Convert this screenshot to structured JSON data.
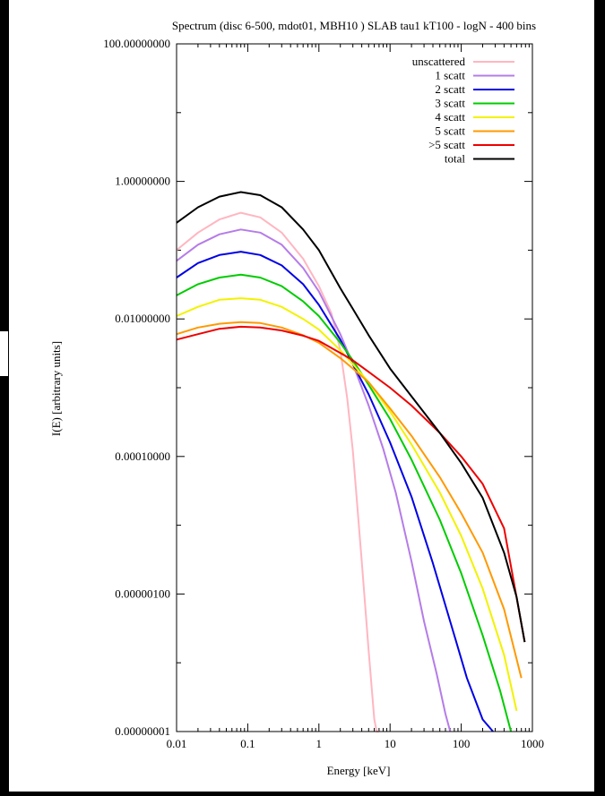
{
  "chart_data": {
    "type": "line",
    "title": "Spectrum (disc 6-500, mdot01, MBH10 ) SLAB tau1 kT100 - logN - 400 bins",
    "xlabel": "Energy [keV]",
    "ylabel": "I(E) [arbitrary units]",
    "xscale": "log",
    "yscale": "log",
    "xlim": [
      0.01,
      1000
    ],
    "ylim": [
      1e-08,
      100
    ],
    "x_tick_labels": [
      "0.01",
      "0.1",
      "1",
      "10",
      "100",
      "1000"
    ],
    "y_tick_labels": [
      "0.00000001",
      "0.00000100",
      "0.00010000",
      "0.01000000",
      "1.00000000",
      "100.00000000"
    ],
    "legend_position": "top-right",
    "grid": false,
    "series": [
      {
        "name": "unscattered",
        "color": "#ffb6c1",
        "x": [
          0.01,
          0.02,
          0.04,
          0.08,
          0.15,
          0.3,
          0.6,
          1.0,
          1.5,
          2.0,
          2.5,
          3.0,
          4.0,
          5.0,
          6.0,
          6.5,
          7.0
        ],
        "y": [
          0.1,
          0.18,
          0.28,
          0.35,
          0.3,
          0.18,
          0.075,
          0.03,
          0.012,
          0.0035,
          0.0007,
          0.00012,
          3e-06,
          1.5e-07,
          1.5e-08,
          1e-08,
          1e-08
        ]
      },
      {
        "name": "1 scatt",
        "color": "#b57ce8",
        "x": [
          0.01,
          0.02,
          0.04,
          0.08,
          0.15,
          0.3,
          0.6,
          1.0,
          2.0,
          3.0,
          5.0,
          8.0,
          12.0,
          20.0,
          30.0,
          45.0,
          60.0,
          70.0
        ],
        "y": [
          0.07,
          0.12,
          0.17,
          0.2,
          0.18,
          0.12,
          0.055,
          0.025,
          0.006,
          0.0022,
          0.00055,
          0.00013,
          3e-05,
          3e-06,
          4e-07,
          7e-08,
          1.8e-08,
          1e-08
        ]
      },
      {
        "name": "2 scatt",
        "color": "#0000e6",
        "x": [
          0.01,
          0.02,
          0.04,
          0.08,
          0.15,
          0.3,
          0.6,
          1.0,
          2.0,
          3.0,
          5.0,
          10.0,
          20.0,
          40.0,
          80.0,
          120.0,
          200.0,
          280.0
        ],
        "y": [
          0.04,
          0.065,
          0.085,
          0.095,
          0.085,
          0.06,
          0.032,
          0.016,
          0.005,
          0.0022,
          0.0008,
          0.00016,
          2.6e-05,
          2.8e-06,
          2.5e-07,
          6e-08,
          1.5e-08,
          1e-08
        ]
      },
      {
        "name": "3 scatt",
        "color": "#00cc00",
        "x": [
          0.01,
          0.02,
          0.04,
          0.08,
          0.15,
          0.3,
          0.6,
          1.0,
          2.0,
          3.0,
          5.0,
          10.0,
          20.0,
          50.0,
          100.0,
          200.0,
          350.0,
          500.0
        ],
        "y": [
          0.022,
          0.032,
          0.04,
          0.044,
          0.04,
          0.03,
          0.018,
          0.011,
          0.0045,
          0.0025,
          0.0011,
          0.00035,
          9e-05,
          1.2e-05,
          2e-06,
          2.5e-07,
          4e-08,
          1e-08
        ]
      },
      {
        "name": "4 scatt",
        "color": "#f2f200",
        "x": [
          0.01,
          0.02,
          0.04,
          0.08,
          0.15,
          0.3,
          0.6,
          1.0,
          2.0,
          3.0,
          5.0,
          10.0,
          20.0,
          50.0,
          100.0,
          200.0,
          400.0,
          600.0
        ],
        "y": [
          0.011,
          0.015,
          0.019,
          0.02,
          0.019,
          0.015,
          0.01,
          0.007,
          0.0035,
          0.0022,
          0.0012,
          0.00045,
          0.00015,
          3e-05,
          7e-06,
          1.2e-06,
          1.3e-07,
          2e-08
        ]
      },
      {
        "name": "5 scatt",
        "color": "#ff9900",
        "x": [
          0.01,
          0.02,
          0.04,
          0.08,
          0.15,
          0.3,
          0.6,
          1.0,
          2.0,
          3.0,
          5.0,
          10.0,
          20.0,
          50.0,
          100.0,
          200.0,
          400.0,
          700.0
        ],
        "y": [
          0.006,
          0.0075,
          0.0085,
          0.009,
          0.0087,
          0.0075,
          0.0058,
          0.0045,
          0.0027,
          0.0019,
          0.0012,
          0.0005,
          0.0002,
          5e-05,
          1.5e-05,
          4e-06,
          6e-07,
          6e-08
        ]
      },
      {
        "name": ">5 scatt",
        "color": "#ee0000",
        "x": [
          0.01,
          0.02,
          0.04,
          0.08,
          0.15,
          0.3,
          0.6,
          1.0,
          2.0,
          3.0,
          5.0,
          10.0,
          20.0,
          50.0,
          100.0,
          200.0,
          400.0,
          780.0
        ],
        "y": [
          0.005,
          0.006,
          0.0072,
          0.0077,
          0.0075,
          0.0068,
          0.0057,
          0.0048,
          0.0032,
          0.0025,
          0.0017,
          0.001,
          0.00055,
          0.00022,
          0.0001,
          4e-05,
          9e-06,
          2e-07
        ]
      },
      {
        "name": "total",
        "color": "#000000",
        "x": [
          0.01,
          0.02,
          0.04,
          0.08,
          0.15,
          0.3,
          0.6,
          1.0,
          2.0,
          3.0,
          5.0,
          10.0,
          20.0,
          50.0,
          100.0,
          200.0,
          400.0,
          600.0,
          780.0
        ],
        "y": [
          0.25,
          0.42,
          0.6,
          0.7,
          0.63,
          0.42,
          0.2,
          0.1,
          0.028,
          0.014,
          0.0058,
          0.0019,
          0.00075,
          0.00022,
          8e-05,
          2.5e-05,
          4e-06,
          9e-07,
          2e-07
        ]
      }
    ]
  }
}
